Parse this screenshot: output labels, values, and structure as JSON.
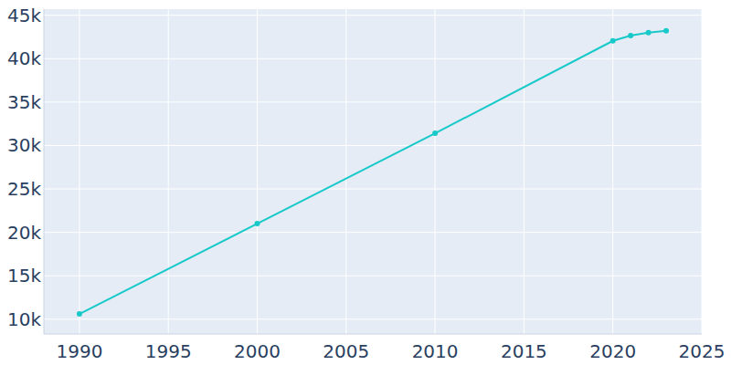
{
  "chart_data": {
    "type": "line",
    "x": [
      1990,
      2000,
      2010,
      2020,
      2021,
      2022,
      2023
    ],
    "values": [
      10600,
      21000,
      31400,
      42050,
      42650,
      43000,
      43200
    ],
    "color": "#17c9c9",
    "marker": "circle",
    "xlim": [
      1988,
      2025
    ],
    "xticks": [
      1990,
      1995,
      2000,
      2005,
      2010,
      2015,
      2020,
      2025
    ],
    "ylim": [
      8300,
      45700
    ],
    "yticks": [
      {
        "value": 10000,
        "label": "10k"
      },
      {
        "value": 15000,
        "label": "15k"
      },
      {
        "value": 20000,
        "label": "20k"
      },
      {
        "value": 25000,
        "label": "25k"
      },
      {
        "value": 30000,
        "label": "30k"
      },
      {
        "value": 35000,
        "label": "35k"
      },
      {
        "value": 40000,
        "label": "40k"
      },
      {
        "value": 45000,
        "label": "45k"
      }
    ],
    "grid": true
  }
}
